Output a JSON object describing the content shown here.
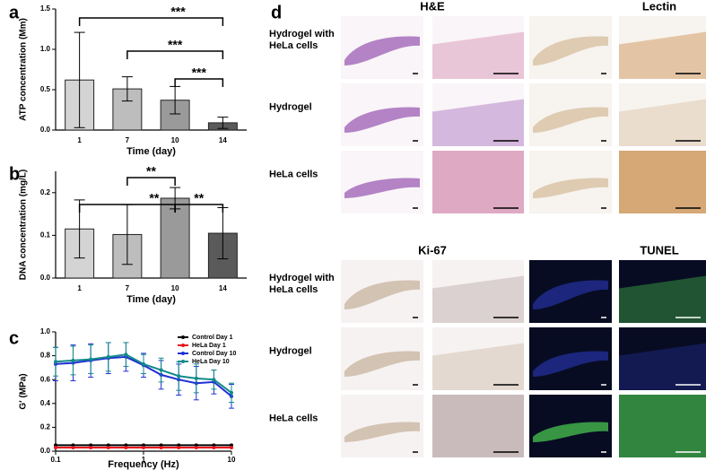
{
  "chart_data": [
    {
      "type": "bar",
      "label": "a",
      "categories": [
        "1",
        "7",
        "10",
        "14"
      ],
      "values": [
        0.62,
        0.51,
        0.37,
        0.09
      ],
      "errors": [
        0.59,
        0.15,
        0.17,
        0.07
      ],
      "colors": [
        "#d4d4d4",
        "#bdbdbd",
        "#9a9a9a",
        "#5a5a5a"
      ],
      "xlabel": "Time (day)",
      "ylabel": "ATP concentration (Mm)",
      "ylim": [
        0,
        1.5
      ],
      "yticks": [
        {
          "value": 0,
          "label": "0.0"
        },
        0.5,
        {
          "value": 1,
          "label": "1.0"
        },
        1.5
      ],
      "annotations": [
        {
          "text": "***",
          "from": "1",
          "to": "14"
        },
        {
          "text": "***",
          "from": "7",
          "to": "14"
        },
        {
          "text": "***",
          "from": "10",
          "to": "14"
        }
      ]
    },
    {
      "type": "bar",
      "label": "b",
      "categories": [
        "1",
        "7",
        "10",
        "14"
      ],
      "values": [
        0.115,
        0.102,
        0.187,
        0.105
      ],
      "errors": [
        0.068,
        0.07,
        0.025,
        0.06
      ],
      "colors": [
        "#d4d4d4",
        "#bdbdbd",
        "#9a9a9a",
        "#5a5a5a"
      ],
      "xlabel": "Time (day)",
      "ylabel": "DNA concentration (mg/L)",
      "ylim": [
        0,
        0.25
      ],
      "yticks": [
        {
          "value": 0,
          "label": "0.0"
        },
        0.1,
        0.2
      ],
      "annotations": [
        {
          "text": "**",
          "from": "1",
          "to": "10"
        },
        {
          "text": "**",
          "from": "7",
          "to": "10"
        },
        {
          "text": "**",
          "from": "10",
          "to": "14"
        }
      ]
    },
    {
      "type": "line",
      "label": "c",
      "xscale": "log",
      "legend": "upper right",
      "xlabel": "Frequency (Hz)",
      "ylabel": "G′ (MPa)",
      "x": [
        0.1,
        0.158,
        0.251,
        0.398,
        0.631,
        1,
        1.585,
        2.512,
        3.981,
        6.31,
        10
      ],
      "xlim": [
        0.1,
        10
      ],
      "xticks": [
        0.1,
        1,
        10
      ],
      "ylim": [
        0,
        1
      ],
      "yticks": [
        {
          "value": 0,
          "label": "0.0"
        },
        0.2,
        0.4,
        0.6,
        0.8,
        {
          "value": 1,
          "label": "1.0"
        }
      ],
      "series": [
        {
          "name": "Control Day 1",
          "color": "#000000",
          "values": [
            0.05,
            0.05,
            0.05,
            0.05,
            0.05,
            0.05,
            0.05,
            0.05,
            0.05,
            0.05,
            0.05
          ]
        },
        {
          "name": "HeLa Day 1",
          "color": "#e8141b",
          "values": [
            0.03,
            0.03,
            0.03,
            0.03,
            0.03,
            0.03,
            0.03,
            0.03,
            0.03,
            0.03,
            0.03
          ]
        },
        {
          "name": "Control Day 10",
          "color": "#1f2fd6",
          "values": [
            0.73,
            0.74,
            0.76,
            0.78,
            0.79,
            0.72,
            0.64,
            0.6,
            0.57,
            0.58,
            0.46
          ],
          "errors": [
            0.14,
            0.15,
            0.14,
            0.13,
            0.12,
            0.1,
            0.12,
            0.13,
            0.14,
            0.1,
            0.1
          ]
        },
        {
          "name": "HeLa Day 10",
          "color": "#138a8a",
          "values": [
            0.75,
            0.76,
            0.77,
            0.79,
            0.81,
            0.73,
            0.68,
            0.63,
            0.61,
            0.6,
            0.49
          ],
          "errors": [
            0.12,
            0.12,
            0.12,
            0.12,
            0.1,
            0.08,
            0.1,
            0.12,
            0.12,
            0.08,
            0.08
          ]
        }
      ]
    }
  ],
  "panel_d": {
    "label": "d",
    "sections": [
      {
        "stains": [
          "H&E",
          "Lectin"
        ],
        "rows": [
          "Hydrogel with HeLa cells",
          "Hydrogel",
          "HeLa cells"
        ]
      },
      {
        "stains": [
          "Ki-67",
          "TUNEL"
        ],
        "rows": [
          "Hydrogel with HeLa cells",
          "Hydrogel",
          "HeLa cells"
        ]
      }
    ]
  }
}
